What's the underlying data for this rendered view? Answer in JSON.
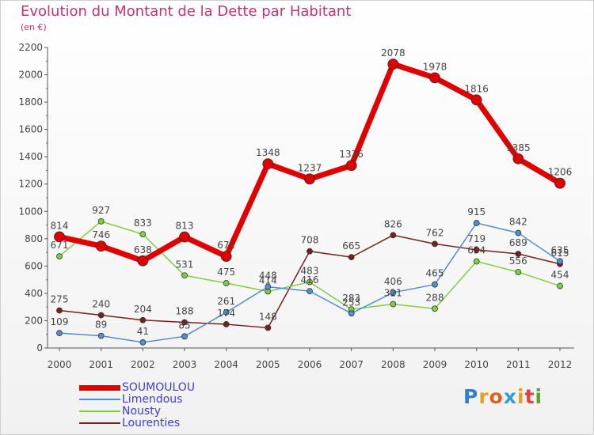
{
  "title": "Evolution du Montant de la Dette par Habitant",
  "subtitle": "(en €)",
  "logo": "Proxiti",
  "chart_data": {
    "type": "line",
    "title": "Evolution du Montant de la Dette par Habitant",
    "subtitle": "(en €)",
    "categories": [
      "2000",
      "2001",
      "2002",
      "2003",
      "2004",
      "2005",
      "2006",
      "2007",
      "2008",
      "2009",
      "2010",
      "2011",
      "2012"
    ],
    "ylim": [
      0,
      2200
    ],
    "yticks": [
      0,
      200,
      400,
      600,
      800,
      1000,
      1200,
      1400,
      1600,
      1800,
      2000,
      2200
    ],
    "grid": false,
    "legend_position": "bottom-left",
    "series": [
      {
        "name": "SOUMOULOU",
        "color": "#e00000",
        "values": [
          814,
          746,
          638,
          813,
          671,
          1348,
          1237,
          1336,
          2078,
          1978,
          1816,
          1385,
          1206
        ]
      },
      {
        "name": "Limendous",
        "color": "#4f8fd0",
        "values": [
          109,
          89,
          41,
          85,
          261,
          448,
          416,
          253,
          406,
          465,
          915,
          842,
          635
        ]
      },
      {
        "name": "Nousty",
        "color": "#7fd040",
        "values": [
          671,
          927,
          833,
          531,
          475,
          414,
          483,
          283,
          321,
          288,
          634,
          556,
          454
        ]
      },
      {
        "name": "Lourenties",
        "color": "#7a1f1f",
        "values": [
          275,
          240,
          204,
          188,
          174,
          148,
          708,
          665,
          826,
          762,
          719,
          689,
          615
        ]
      }
    ]
  }
}
